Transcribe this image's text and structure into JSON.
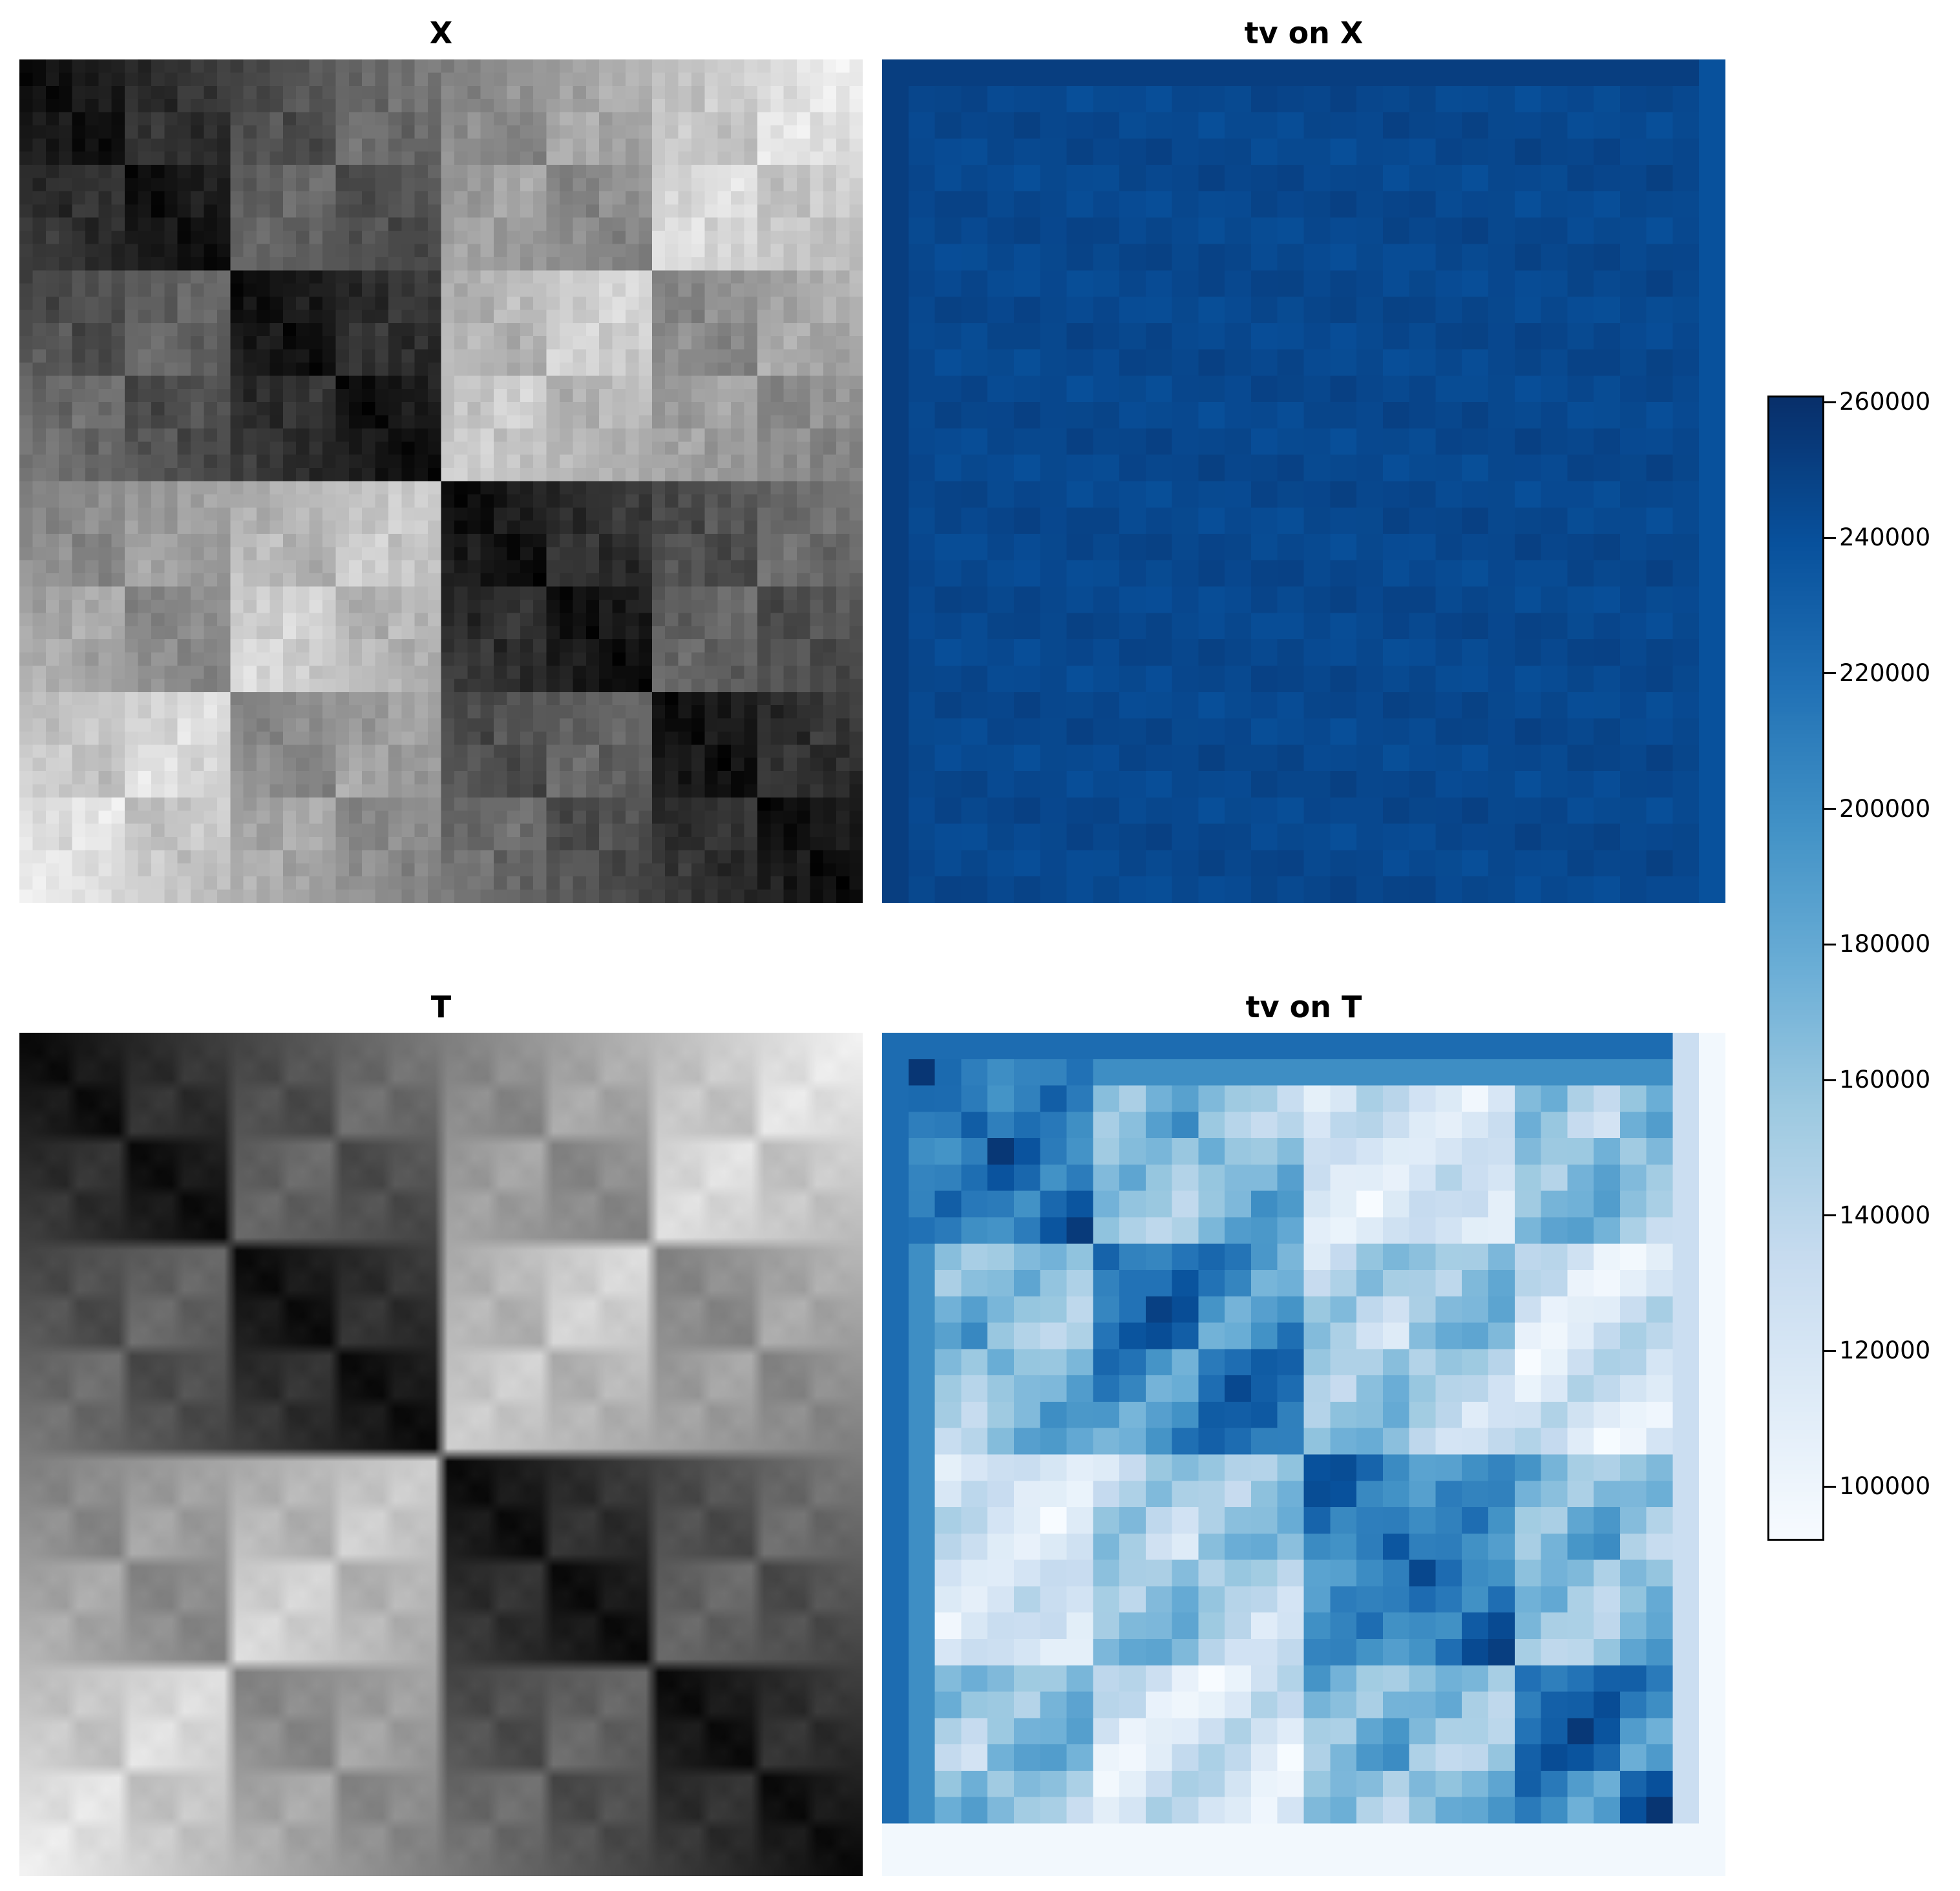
{
  "chart_data": [
    {
      "type": "heatmap",
      "title": "X",
      "colormap": "Greys",
      "grid_size": [
        64,
        64
      ],
      "description_of_values": "block-structured similarity matrix: dark along the main diagonal blocks, light on anti-diagonal blocks",
      "grid": false
    },
    {
      "type": "heatmap",
      "title": "tv on X",
      "colormap": "Blues",
      "grid_size": [
        32,
        32
      ],
      "value_range": [
        240000,
        260000
      ],
      "grid": false
    },
    {
      "type": "heatmap",
      "title": "T",
      "colormap": "Greys",
      "grid_size": [
        64,
        64
      ],
      "grid": false
    },
    {
      "type": "heatmap",
      "title": "tv on T",
      "colormap": "Blues",
      "grid_size": [
        32,
        32
      ],
      "value_range": [
        92000,
        250000
      ],
      "grid": false
    }
  ],
  "colorbar": {
    "colormap": "Blues",
    "vmin": 92000,
    "vmax": 261000,
    "ticks": [
      100000,
      120000,
      140000,
      160000,
      180000,
      200000,
      220000,
      240000,
      260000
    ],
    "tick_labels": [
      "100000",
      "120000",
      "140000",
      "160000",
      "180000",
      "200000",
      "220000",
      "240000",
      "260000"
    ]
  }
}
